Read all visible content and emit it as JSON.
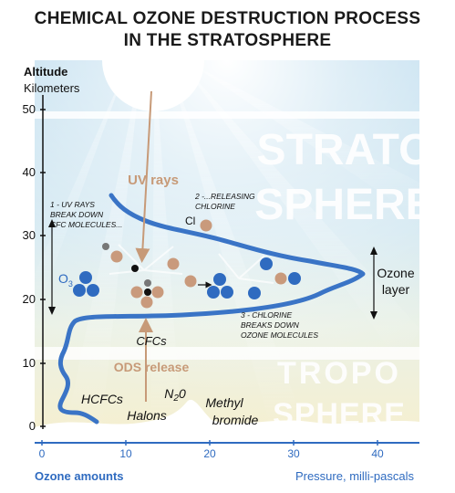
{
  "title": {
    "line1": "CHEMICAL OZONE DESTRUCTION PROCESS",
    "line2": "IN THE STRATOSPHERE"
  },
  "axes": {
    "y_title_line1": "Altitude",
    "y_title_line2": "Kilometers",
    "y_ticks": [
      "50",
      "40",
      "30",
      "20",
      "10",
      "0"
    ],
    "x_ticks": [
      "0",
      "10",
      "20",
      "30",
      "40"
    ],
    "x_label_left": "Ozone amounts",
    "x_label_right": "Pressure, milli-pascals"
  },
  "regions": {
    "strato_line1": "STRATO",
    "strato_line2": "SPHERE",
    "tropo_line1": "TROPO",
    "tropo_line2": "SPHERE"
  },
  "labels": {
    "uv_rays": "UV rays",
    "step1_line1": "1 - UV RAYS",
    "step1_line2": "BREAK DOWN",
    "step1_line3": "CFC MOLECULES...",
    "step2_line1": "2 -...RELEASING",
    "step2_line2": "CHLORINE",
    "step3_line1": "3 - CHLORINE",
    "step3_line2": "BREAKS DOWN",
    "step3_line3": "OZONE MOLECULES",
    "cl": "Cl",
    "o3_main": "O",
    "o3_sub": "3",
    "ozone_layer_line1": "Ozone",
    "ozone_layer_line2": "layer",
    "cfcs": "CFCs",
    "ods_release": "ODS release",
    "hcfcs": "HCFCs",
    "halons": "Halons",
    "n2o_main": "N",
    "n2o_sub": "2",
    "n2o_end": "0",
    "methyl_line1": "Methyl",
    "methyl_line2": "bromide"
  },
  "colors": {
    "ozone_blue": "#2f6bc0",
    "chlorine_tan": "#c99a7c",
    "curve_blue": "#3a74c6",
    "label_tan": "#c79a78",
    "axis_blue": "#2f6bc0",
    "sky_top": "#bcdcee",
    "sky_bottom": "#f3eed5"
  }
}
